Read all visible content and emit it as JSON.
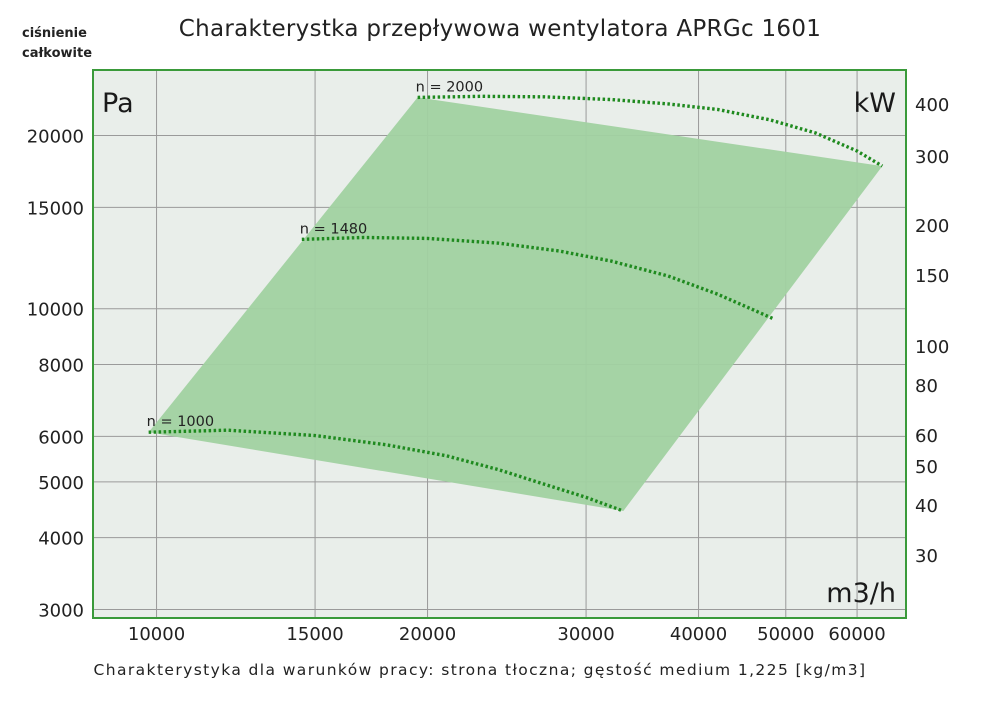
{
  "header": {
    "y_axis_title_line1": "ciśnienie",
    "y_axis_title_line2": "całkowite",
    "title": "Charakterystka przepływowa wentylatora APRGc 1601"
  },
  "footer": {
    "caption": "Charakterystyka dla warunków pracy: strona tłoczna; gęstość medium 1,225 [kg/m3]"
  },
  "chart_data": {
    "type": "line",
    "title": "Charakterystka przepływowa wentylatora APRGc 1601",
    "xlabel": "m3/h",
    "ylabel": "Pa",
    "y2label": "kW",
    "x_scale": "log",
    "y_scale": "log",
    "xlim": [
      8500,
      68000
    ],
    "ylim": [
      2900,
      26000
    ],
    "x_ticks": [
      10000,
      15000,
      20000,
      30000,
      40000,
      50000,
      60000
    ],
    "x_tick_labels": [
      "10000",
      "15000",
      "20000",
      "30000",
      "40000",
      "50000",
      "60000"
    ],
    "y_ticks": [
      3000,
      4000,
      5000,
      6000,
      8000,
      10000,
      15000,
      20000
    ],
    "y_tick_labels": [
      "3000",
      "4000",
      "5000",
      "6000",
      "8000",
      "10000",
      "15000",
      "20000"
    ],
    "y2_tick_labels": [
      "400",
      "300",
      "200",
      "150",
      "100",
      "80",
      "60",
      "50",
      "40",
      "30"
    ],
    "grid": true,
    "colors": {
      "fill": "#a1d1a1",
      "curve": "#1f8a1f",
      "frame": "#3a9a3a",
      "background": "#e9eeea"
    },
    "operating_area": {
      "corners_x": [
        9800,
        19500,
        64000,
        33000
      ],
      "corners_y": [
        6100,
        23300,
        17700,
        4450
      ]
    },
    "series": [
      {
        "name": "n = 1000",
        "x": [
          9800,
          12000,
          15000,
          18000,
          21000,
          24000,
          27000,
          30000,
          33000
        ],
        "y": [
          6100,
          6150,
          6020,
          5800,
          5550,
          5250,
          4950,
          4700,
          4450
        ]
      },
      {
        "name": "n = 1480",
        "x": [
          14500,
          17000,
          20000,
          24000,
          28000,
          32000,
          37000,
          42000,
          48500
        ],
        "y": [
          13200,
          13300,
          13250,
          13000,
          12600,
          12100,
          11400,
          10600,
          9600
        ]
      },
      {
        "name": "n = 2000",
        "x": [
          19500,
          23000,
          27000,
          32000,
          37000,
          42000,
          48000,
          54000,
          60000,
          64000
        ],
        "y": [
          23300,
          23400,
          23350,
          23100,
          22700,
          22200,
          21300,
          20200,
          18800,
          17700
        ]
      }
    ]
  }
}
